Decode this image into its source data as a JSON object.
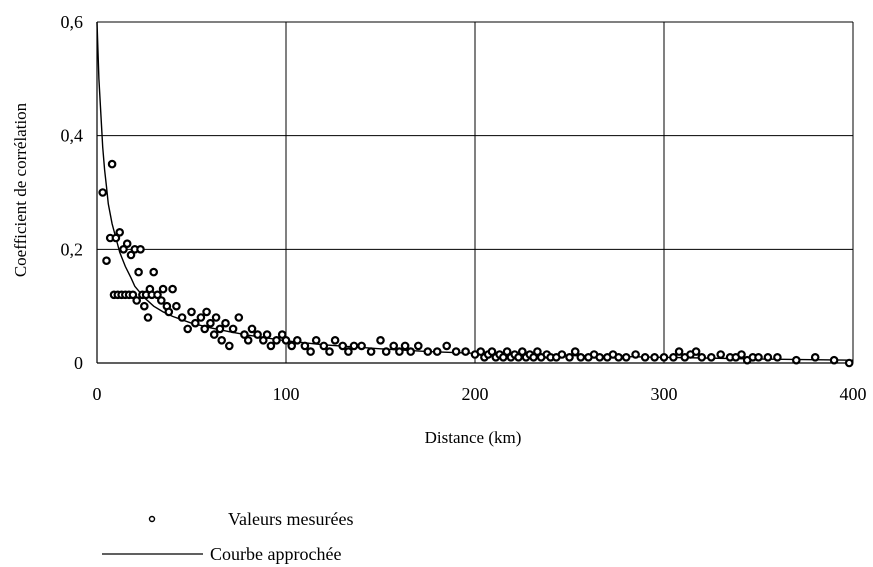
{
  "chart_data": {
    "type": "scatter",
    "title": "",
    "xlabel": "Distance (km)",
    "ylabel": "Coefficient de corrélation",
    "xlim": [
      0,
      400
    ],
    "ylim": [
      0,
      0.6
    ],
    "x_ticks": [
      0,
      100,
      200,
      300,
      400
    ],
    "x_tick_labels": [
      "0",
      "100",
      "200",
      "300",
      "400"
    ],
    "y_ticks": [
      0,
      0.2,
      0.4,
      0.6
    ],
    "y_tick_labels": [
      "0",
      "0,2",
      "0,4",
      "0,6"
    ],
    "grid": true,
    "legend_position": "bottom",
    "legend": {
      "measured_label": "Valeurs mesurées",
      "fit_label": "Courbe approchée"
    },
    "series": [
      {
        "name": "Valeurs mesurées",
        "kind": "scatter",
        "color": "#000000",
        "x": [
          3,
          5,
          7,
          8,
          9,
          10,
          11,
          12,
          13,
          14,
          15,
          16,
          17,
          18,
          19,
          20,
          21,
          22,
          23,
          24,
          25,
          26,
          27,
          28,
          29,
          30,
          32,
          34,
          35,
          37,
          38,
          40,
          42,
          45,
          48,
          50,
          52,
          55,
          57,
          58,
          60,
          62,
          63,
          65,
          66,
          68,
          70,
          72,
          75,
          78,
          80,
          82,
          85,
          88,
          90,
          92,
          95,
          98,
          100,
          103,
          106,
          110,
          113,
          116,
          120,
          123,
          126,
          130,
          133,
          136,
          140,
          145,
          150,
          153,
          157,
          160,
          163,
          166,
          170,
          175,
          180,
          185,
          190,
          195,
          200,
          203,
          205,
          207,
          209,
          211,
          213,
          215,
          217,
          219,
          221,
          223,
          225,
          227,
          229,
          231,
          233,
          235,
          238,
          240,
          243,
          246,
          250,
          253,
          256,
          260,
          263,
          266,
          270,
          273,
          276,
          280,
          285,
          290,
          295,
          300,
          305,
          308,
          311,
          314,
          317,
          320,
          325,
          330,
          335,
          338,
          341,
          344,
          347,
          350,
          355,
          360,
          370,
          380,
          390,
          398
        ],
        "y": [
          0.3,
          0.18,
          0.22,
          0.35,
          0.12,
          0.22,
          0.12,
          0.23,
          0.12,
          0.2,
          0.12,
          0.21,
          0.12,
          0.19,
          0.12,
          0.2,
          0.11,
          0.16,
          0.2,
          0.12,
          0.1,
          0.12,
          0.08,
          0.13,
          0.12,
          0.16,
          0.12,
          0.11,
          0.13,
          0.1,
          0.09,
          0.13,
          0.1,
          0.08,
          0.06,
          0.09,
          0.07,
          0.08,
          0.06,
          0.09,
          0.07,
          0.05,
          0.08,
          0.06,
          0.04,
          0.07,
          0.03,
          0.06,
          0.08,
          0.05,
          0.04,
          0.06,
          0.05,
          0.04,
          0.05,
          0.03,
          0.04,
          0.05,
          0.04,
          0.03,
          0.04,
          0.03,
          0.02,
          0.04,
          0.03,
          0.02,
          0.04,
          0.03,
          0.02,
          0.03,
          0.03,
          0.02,
          0.04,
          0.02,
          0.03,
          0.02,
          0.03,
          0.02,
          0.03,
          0.02,
          0.02,
          0.03,
          0.02,
          0.02,
          0.015,
          0.02,
          0.01,
          0.015,
          0.02,
          0.01,
          0.015,
          0.01,
          0.02,
          0.01,
          0.015,
          0.01,
          0.02,
          0.01,
          0.015,
          0.01,
          0.02,
          0.01,
          0.015,
          0.01,
          0.01,
          0.015,
          0.01,
          0.02,
          0.01,
          0.01,
          0.015,
          0.01,
          0.01,
          0.015,
          0.01,
          0.01,
          0.015,
          0.01,
          0.01,
          0.01,
          0.01,
          0.02,
          0.01,
          0.015,
          0.02,
          0.01,
          0.01,
          0.015,
          0.01,
          0.01,
          0.015,
          0.005,
          0.01,
          0.01,
          0.01,
          0.01,
          0.005,
          0.01,
          0.005,
          0.0
        ]
      },
      {
        "name": "Courbe approchée",
        "kind": "line",
        "color": "#000000",
        "x": [
          0,
          1,
          2,
          3,
          4,
          5,
          6,
          8,
          10,
          12,
          15,
          18,
          20,
          25,
          30,
          35,
          40,
          50,
          60,
          70,
          80,
          100,
          120,
          150,
          175,
          200,
          250,
          300,
          350,
          400
        ],
        "y": [
          0.6,
          0.5,
          0.44,
          0.38,
          0.34,
          0.31,
          0.28,
          0.245,
          0.22,
          0.195,
          0.17,
          0.15,
          0.135,
          0.115,
          0.1,
          0.09,
          0.082,
          0.07,
          0.062,
          0.055,
          0.049,
          0.039,
          0.032,
          0.025,
          0.02,
          0.017,
          0.013,
          0.01,
          0.007,
          0.005
        ]
      }
    ]
  }
}
